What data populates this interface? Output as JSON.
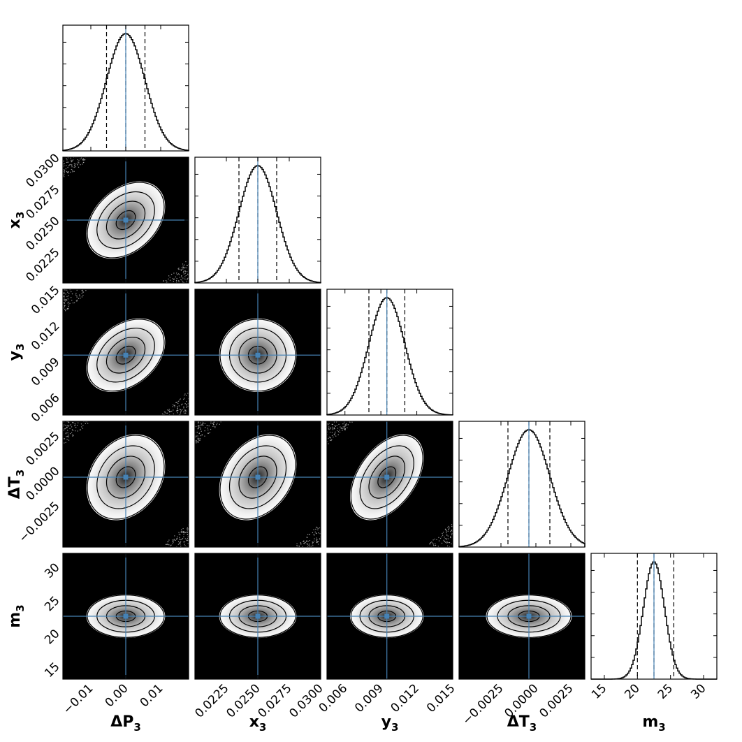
{
  "chart_data": {
    "type": "corner",
    "title": "",
    "parameters": [
      {
        "name": "ΔP",
        "sub": "3",
        "range": [
          -0.018,
          0.018
        ],
        "truth": 0.0,
        "sigma": 0.0055,
        "quantiles": [
          -0.0055,
          0.0,
          0.0055
        ],
        "ticks": [
          -0.01,
          0.0,
          0.01
        ],
        "tick_labels": [
          "−0.01",
          "0.00",
          "0.01"
        ]
      },
      {
        "name": "x",
        "sub": "3",
        "range": [
          0.02,
          0.03
        ],
        "truth": 0.025,
        "sigma": 0.0015,
        "quantiles": [
          0.0235,
          0.025,
          0.0265
        ],
        "ticks": [
          0.0225,
          0.025,
          0.0275,
          0.03
        ],
        "tick_labels": [
          "0.0225",
          "0.0250",
          "0.0275",
          "0.0300"
        ]
      },
      {
        "name": "y",
        "sub": "3",
        "range": [
          0.0045,
          0.015
        ],
        "truth": 0.0095,
        "sigma": 0.0015,
        "quantiles": [
          0.008,
          0.0095,
          0.011
        ],
        "ticks": [
          0.006,
          0.009,
          0.012,
          0.015
        ],
        "tick_labels": [
          "0.006",
          "0.009",
          "0.012",
          "0.015"
        ]
      },
      {
        "name": "ΔT",
        "sub": "3",
        "range": [
          -0.0055,
          0.0035
        ],
        "truth": -0.0005,
        "sigma": 0.0015,
        "quantiles": [
          -0.002,
          -0.0005,
          0.001
        ],
        "ticks": [
          -0.0025,
          0.0,
          0.0025
        ],
        "tick_labels": [
          "−0.0025",
          "0.0000",
          "0.0025"
        ]
      },
      {
        "name": "m",
        "sub": "3",
        "range": [
          13,
          32
        ],
        "truth": 22.5,
        "sigma": 1.6,
        "quantiles": [
          20,
          22.5,
          25.5
        ],
        "ticks": [
          15,
          20,
          25,
          30
        ],
        "tick_labels": [
          "15",
          "20",
          "25",
          "30"
        ]
      }
    ],
    "correlations": {
      "0-1": 0.35,
      "0-2": 0.35,
      "0-3": 0.25,
      "1-2": 0.0,
      "1-3": 0.3,
      "2-3": 0.45
    },
    "contour_levels_sigma": [
      0.5,
      1.0,
      1.5,
      2.0
    ],
    "truth_color": "#4682b4",
    "histogram_color": "#000000",
    "density_colormap": "gray",
    "grid": false,
    "legend": "none"
  }
}
